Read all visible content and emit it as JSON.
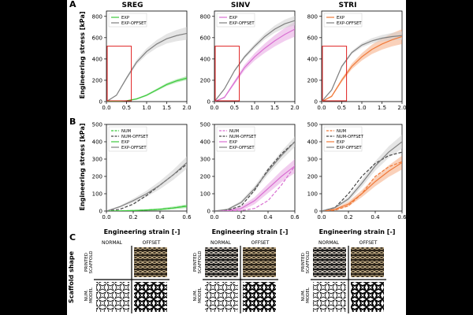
{
  "panels": {
    "a": "A",
    "b": "B",
    "c": "C"
  },
  "columns": [
    "SREG",
    "SINV",
    "STRI"
  ],
  "axis_labels": {
    "y": "Engineering stress [kPa]",
    "x": "Engineering strain [-]"
  },
  "colors": {
    "sreg": "#3cc93c",
    "sinv": "#d96fd2",
    "stri": "#f07a3a",
    "offset": "#7f7f7f",
    "num": "#444444",
    "box": "#e02020"
  },
  "chart_data": [
    {
      "type": "line",
      "panel": "A",
      "title": "SREG",
      "xlim": [
        0,
        2
      ],
      "ylim": [
        0,
        850
      ],
      "xticks": [
        "0.0",
        "0.5",
        "1.0",
        "1.5",
        "2.0"
      ],
      "xtick_values": [
        0,
        0.5,
        1,
        1.5,
        2
      ],
      "yticks": [
        "0",
        "200",
        "400",
        "600",
        "800"
      ],
      "ytick_values": [
        0,
        200,
        400,
        600,
        800
      ],
      "inset_box": {
        "x": [
          0,
          0.6
        ],
        "y": [
          0,
          520
        ]
      },
      "legend": [
        "EXP",
        "EXP-OFFSET"
      ],
      "series": [
        {
          "name": "EXP",
          "style": "solid",
          "color_key": "sreg",
          "band": 18,
          "x": [
            0,
            0.25,
            0.5,
            0.75,
            1.0,
            1.25,
            1.5,
            1.75,
            2.0
          ],
          "y": [
            0,
            2,
            8,
            25,
            60,
            110,
            160,
            195,
            220
          ]
        },
        {
          "name": "EXP-OFFSET",
          "style": "solid",
          "color_key": "offset",
          "band": 60,
          "x": [
            0,
            0.25,
            0.5,
            0.75,
            1.0,
            1.25,
            1.5,
            1.75,
            2.0
          ],
          "y": [
            0,
            60,
            220,
            370,
            470,
            540,
            590,
            620,
            640
          ]
        }
      ]
    },
    {
      "type": "line",
      "panel": "A",
      "title": "SINV",
      "xlim": [
        0,
        2
      ],
      "ylim": [
        0,
        850
      ],
      "xticks": [
        "0.0",
        "0.5",
        "1.0",
        "1.5",
        "2.0"
      ],
      "xtick_values": [
        0,
        0.5,
        1,
        1.5,
        2
      ],
      "yticks": [
        "0",
        "200",
        "400",
        "600",
        "800"
      ],
      "ytick_values": [
        0,
        200,
        400,
        600,
        800
      ],
      "inset_box": {
        "x": [
          0,
          0.6
        ],
        "y": [
          0,
          520
        ]
      },
      "legend": [
        "EXP",
        "EXP-OFFSET"
      ],
      "series": [
        {
          "name": "EXP",
          "style": "solid",
          "color_key": "sinv",
          "band": 70,
          "x": [
            0,
            0.25,
            0.5,
            0.75,
            1.0,
            1.25,
            1.5,
            1.75,
            2.0
          ],
          "y": [
            0,
            40,
            180,
            320,
            420,
            500,
            570,
            630,
            680
          ]
        },
        {
          "name": "EXP-OFFSET",
          "style": "solid",
          "color_key": "offset",
          "band": 45,
          "x": [
            0,
            0.25,
            0.5,
            0.75,
            1.0,
            1.25,
            1.5,
            1.75,
            2.0
          ],
          "y": [
            0,
            120,
            290,
            420,
            520,
            610,
            680,
            730,
            760
          ]
        }
      ]
    },
    {
      "type": "line",
      "panel": "A",
      "title": "STRI",
      "xlim": [
        0,
        2
      ],
      "ylim": [
        0,
        850
      ],
      "xticks": [
        "0.0",
        "0.5",
        "1.0",
        "1.5",
        "2.0"
      ],
      "xtick_values": [
        0,
        0.5,
        1,
        1.5,
        2
      ],
      "yticks": [
        "0",
        "200",
        "400",
        "600",
        "800"
      ],
      "ytick_values": [
        0,
        200,
        400,
        600,
        800
      ],
      "inset_box": {
        "x": [
          0,
          0.6
        ],
        "y": [
          0,
          520
        ]
      },
      "legend": [
        "EXP",
        "EXP-OFFSET"
      ],
      "series": [
        {
          "name": "EXP",
          "style": "solid",
          "color_key": "stri",
          "band": 70,
          "x": [
            0,
            0.25,
            0.5,
            0.75,
            1.0,
            1.25,
            1.5,
            1.75,
            2.0
          ],
          "y": [
            0,
            50,
            200,
            330,
            420,
            490,
            540,
            580,
            610
          ]
        },
        {
          "name": "EXP-OFFSET",
          "style": "solid",
          "color_key": "offset",
          "band": 40,
          "x": [
            0,
            0.25,
            0.5,
            0.75,
            1.0,
            1.25,
            1.5,
            1.75,
            2.0
          ],
          "y": [
            0,
            110,
            330,
            460,
            530,
            570,
            595,
            610,
            620
          ]
        }
      ]
    },
    {
      "type": "line",
      "panel": "B",
      "title": "SREG",
      "xlim": [
        0,
        0.6
      ],
      "ylim": [
        0,
        500
      ],
      "xticks": [
        "0.0",
        "0.2",
        "0.4",
        "0.6"
      ],
      "xtick_values": [
        0,
        0.2,
        0.4,
        0.6
      ],
      "yticks": [
        "0",
        "100",
        "200",
        "300",
        "400",
        "500"
      ],
      "ytick_values": [
        0,
        100,
        200,
        300,
        400,
        500
      ],
      "legend": [
        "NUM",
        "NUM-OFFSET",
        "EXP",
        "EXP-OFFSET"
      ],
      "series": [
        {
          "name": "NUM",
          "style": "dashed",
          "color_key": "sreg",
          "band": 0,
          "x": [
            0,
            0.1,
            0.2,
            0.3,
            0.4,
            0.5,
            0.6
          ],
          "y": [
            0,
            1,
            3,
            6,
            10,
            18,
            30
          ]
        },
        {
          "name": "NUM-OFFSET",
          "style": "dashed",
          "color_key": "num",
          "band": 0,
          "x": [
            0,
            0.1,
            0.2,
            0.3,
            0.4,
            0.5,
            0.6
          ],
          "y": [
            0,
            10,
            40,
            90,
            150,
            210,
            270
          ]
        },
        {
          "name": "EXP",
          "style": "solid",
          "color_key": "sreg",
          "band": 10,
          "x": [
            0,
            0.1,
            0.2,
            0.3,
            0.4,
            0.5,
            0.6
          ],
          "y": [
            0,
            1,
            3,
            6,
            10,
            18,
            28
          ]
        },
        {
          "name": "EXP-OFFSET",
          "style": "solid",
          "color_key": "offset",
          "band": 35,
          "x": [
            0,
            0.1,
            0.2,
            0.3,
            0.4,
            0.5,
            0.6
          ],
          "y": [
            0,
            25,
            60,
            100,
            150,
            210,
            280
          ]
        }
      ]
    },
    {
      "type": "line",
      "panel": "B",
      "title": "SINV",
      "xlim": [
        0,
        0.6
      ],
      "ylim": [
        0,
        500
      ],
      "xticks": [
        "0.0",
        "0.2",
        "0.4",
        "0.6"
      ],
      "xtick_values": [
        0,
        0.2,
        0.4,
        0.6
      ],
      "yticks": [
        "0",
        "100",
        "200",
        "300",
        "400",
        "500"
      ],
      "ytick_values": [
        0,
        100,
        200,
        300,
        400,
        500
      ],
      "legend": [
        "NUM",
        "NUM-OFFSET",
        "EXP",
        "EXP-OFFSET"
      ],
      "series": [
        {
          "name": "NUM",
          "style": "dashed",
          "color_key": "sinv",
          "band": 0,
          "x": [
            0,
            0.1,
            0.2,
            0.3,
            0.4,
            0.5,
            0.6
          ],
          "y": [
            0,
            0,
            3,
            15,
            60,
            150,
            260
          ]
        },
        {
          "name": "NUM-OFFSET",
          "style": "dashed",
          "color_key": "num",
          "band": 0,
          "x": [
            0,
            0.1,
            0.2,
            0.3,
            0.4,
            0.5,
            0.6
          ],
          "y": [
            0,
            5,
            30,
            120,
            240,
            330,
            400
          ]
        },
        {
          "name": "EXP",
          "style": "solid",
          "color_key": "sinv",
          "band": 40,
          "x": [
            0,
            0.1,
            0.2,
            0.3,
            0.4,
            0.5,
            0.6
          ],
          "y": [
            0,
            2,
            15,
            60,
            130,
            200,
            260
          ]
        },
        {
          "name": "EXP-OFFSET",
          "style": "solid",
          "color_key": "offset",
          "band": 30,
          "x": [
            0,
            0.1,
            0.2,
            0.3,
            0.4,
            0.5,
            0.6
          ],
          "y": [
            0,
            10,
            50,
            130,
            230,
            320,
            400
          ]
        }
      ]
    },
    {
      "type": "line",
      "panel": "B",
      "title": "STRI",
      "xlim": [
        0,
        0.6
      ],
      "ylim": [
        0,
        500
      ],
      "xticks": [
        "0.0",
        "0.2",
        "0.4",
        "0.6"
      ],
      "xtick_values": [
        0,
        0.2,
        0.4,
        0.6
      ],
      "yticks": [
        "0",
        "100",
        "200",
        "300",
        "400",
        "500"
      ],
      "ytick_values": [
        0,
        100,
        200,
        300,
        400,
        500
      ],
      "legend": [
        "NUM",
        "NUM-OFFSET",
        "EXP",
        "EXP-OFFSET"
      ],
      "series": [
        {
          "name": "NUM",
          "style": "dashed",
          "color_key": "stri",
          "band": 0,
          "x": [
            0,
            0.1,
            0.2,
            0.3,
            0.4,
            0.5,
            0.6
          ],
          "y": [
            0,
            5,
            30,
            100,
            200,
            255,
            285
          ]
        },
        {
          "name": "NUM-OFFSET",
          "style": "dashed",
          "color_key": "num",
          "band": 0,
          "x": [
            0,
            0.1,
            0.2,
            0.3,
            0.4,
            0.5,
            0.6
          ],
          "y": [
            0,
            20,
            100,
            200,
            275,
            320,
            340
          ]
        },
        {
          "name": "EXP",
          "style": "solid",
          "color_key": "stri",
          "band": 40,
          "x": [
            0,
            0.1,
            0.2,
            0.3,
            0.4,
            0.5,
            0.6
          ],
          "y": [
            0,
            10,
            40,
            100,
            170,
            230,
            280
          ]
        },
        {
          "name": "EXP-OFFSET",
          "style": "solid",
          "color_key": "offset",
          "band": 40,
          "x": [
            0,
            0.1,
            0.2,
            0.3,
            0.4,
            0.5,
            0.6
          ],
          "y": [
            0,
            20,
            70,
            160,
            260,
            340,
            400
          ]
        }
      ]
    }
  ],
  "panel_c": {
    "side_label": "Scaffold shape",
    "col_headers": [
      "NORMAL",
      "OFFSET"
    ],
    "row_labels": [
      "PRINTED SCAFFOLD",
      "NUM. MODEL"
    ],
    "groups": [
      "SREG",
      "SINV",
      "STRI"
    ]
  }
}
